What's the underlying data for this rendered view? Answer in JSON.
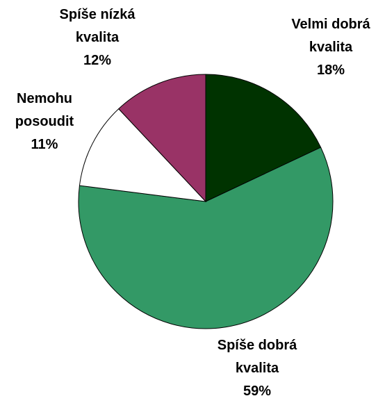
{
  "chart_data": {
    "type": "pie",
    "categories": [
      "Velmi dobrá kvalita",
      "Spíše dobrá kvalita",
      "Nemohu posoudit",
      "Spíše nízká kvalita"
    ],
    "values": [
      18,
      59,
      11,
      12
    ],
    "value_labels": [
      "18%",
      "59%",
      "11%",
      "12%"
    ],
    "colors": [
      "#003300",
      "#339966",
      "#ffffff",
      "#993366"
    ]
  }
}
